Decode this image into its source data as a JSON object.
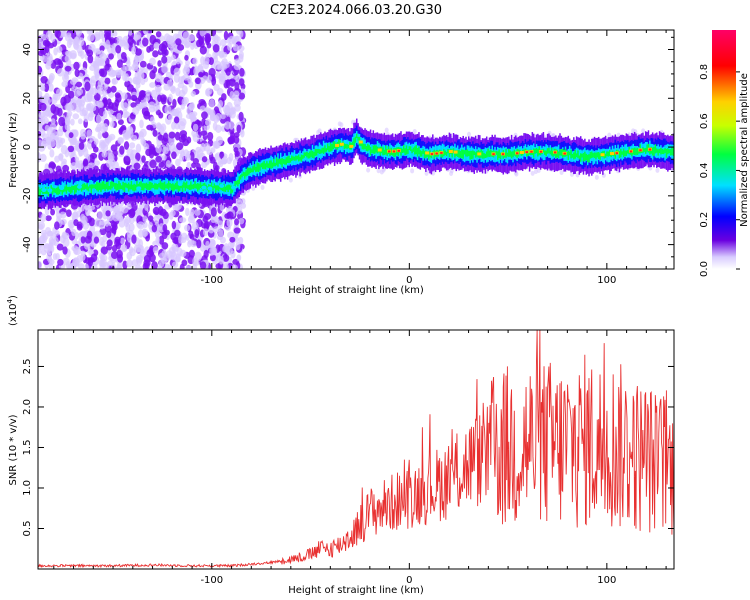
{
  "title": "C2E3.2024.066.03.20.G30",
  "chart_data": [
    {
      "type": "heatmap",
      "xlabel": "Height of straight line (km)",
      "ylabel": "Frequency (Hz)",
      "xlim": [
        -188,
        134
      ],
      "ylim": [
        -50,
        48
      ],
      "xticks": [
        -100,
        0,
        100
      ],
      "xtick_labels": [
        "-100",
        "0",
        "100"
      ],
      "yticks": [
        -40,
        -20,
        0,
        20,
        40
      ],
      "ytick_labels": [
        "-40",
        "-20",
        "0",
        "20",
        "40"
      ],
      "grid": false,
      "colorbar": {
        "label": "Normalized spectral amplitude",
        "range": [
          0.0,
          0.97
        ],
        "ticks": [
          0.0,
          0.2,
          0.4,
          0.6,
          0.8
        ],
        "tick_labels": [
          "0.0",
          "0.2",
          "0.4",
          "0.6",
          "0.8"
        ],
        "colormap": "rainbow",
        "colors": [
          "#ffffff",
          "#d9ccff",
          "#6a00e0",
          "#0000ff",
          "#00e0ff",
          "#00ff40",
          "#c8ff00",
          "#ffd000",
          "#ff0000",
          "#ff0066"
        ]
      },
      "ridge": {
        "x": [
          -188,
          -170,
          -150,
          -130,
          -110,
          -90,
          -85,
          -80,
          -70,
          -60,
          -50,
          -40,
          -35,
          -30,
          -27,
          -25,
          -20,
          -10,
          0,
          10,
          20,
          30,
          40,
          50,
          60,
          70,
          80,
          90,
          100,
          110,
          120,
          130,
          134
        ],
        "freq": [
          -18,
          -17,
          -16,
          -16,
          -16,
          -17,
          -12,
          -9,
          -7,
          -5,
          -3,
          0,
          1,
          0,
          4,
          1,
          -1,
          -2,
          -1,
          -3,
          -2,
          -3,
          -3,
          -3,
          -2,
          -2,
          -3,
          -4,
          -3,
          -2,
          -1,
          -2,
          -2
        ]
      }
    },
    {
      "type": "line",
      "xlabel": "Height of straight line (km)",
      "ylabel": "SNR (10 * v/v)",
      "y_multiplier_label": "(x10",
      "y_multiplier_exp": "4",
      "y_multiplier_close": ")",
      "xlim": [
        -188,
        134
      ],
      "ylim": [
        0,
        2.95
      ],
      "xticks": [
        -100,
        0,
        100
      ],
      "xtick_labels": [
        "-100",
        "0",
        "100"
      ],
      "yticks": [
        0.5,
        1.0,
        1.5,
        2.0,
        2.5
      ],
      "ytick_labels": [
        "0.5",
        "1.0",
        "1.5",
        "2.0",
        "2.5"
      ],
      "grid": false,
      "series": [
        {
          "color": "#e83030",
          "x": [
            -188,
            -170,
            -150,
            -130,
            -110,
            -90,
            -80,
            -70,
            -60,
            -50,
            -45,
            -40,
            -35,
            -30,
            -25,
            -20,
            -15,
            -10,
            -5,
            0,
            5,
            10,
            15,
            20,
            25,
            30,
            35,
            40,
            45,
            50,
            55,
            60,
            65,
            70,
            75,
            80,
            85,
            90,
            95,
            100,
            105,
            110,
            115,
            120,
            125,
            130,
            134
          ],
          "y": [
            0.04,
            0.04,
            0.04,
            0.05,
            0.04,
            0.04,
            0.06,
            0.08,
            0.12,
            0.18,
            0.25,
            0.25,
            0.3,
            0.4,
            0.55,
            0.7,
            0.75,
            0.8,
            0.85,
            0.9,
            0.95,
            1.0,
            1.05,
            1.1,
            1.2,
            1.3,
            1.35,
            1.4,
            1.45,
            1.5,
            1.5,
            1.55,
            1.5,
            1.55,
            1.5,
            1.55,
            1.5,
            1.6,
            1.5,
            1.6,
            1.5,
            1.5,
            1.4,
            1.4,
            1.3,
            1.3,
            1.2
          ]
        }
      ]
    }
  ]
}
